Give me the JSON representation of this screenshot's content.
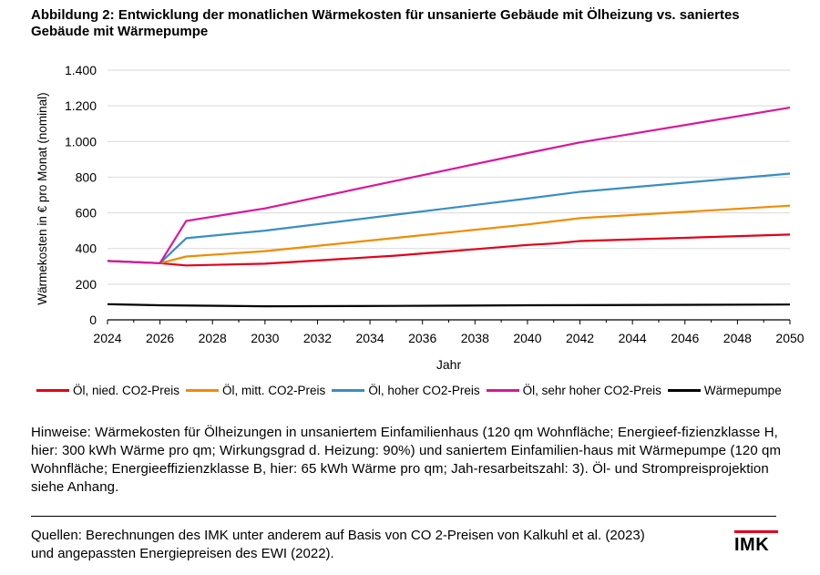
{
  "title": "Abbildung 2: Entwicklung der monatlichen Wärmekosten für unsanierte Gebäude mit Ölheizung vs. saniertes Gebäude mit Wärmepumpe",
  "chart_data": {
    "type": "line",
    "ylabel": "Wärmekosten in € pro Monat (nominal)",
    "xlabel": "Jahr",
    "ylim": [
      0,
      1400
    ],
    "xlim": [
      2024,
      2050
    ],
    "y_ticks": [
      0,
      200,
      400,
      600,
      800,
      1000,
      1200,
      1400
    ],
    "y_tick_labels": [
      "0",
      "200",
      "400",
      "600",
      "800",
      "1.000",
      "1.200",
      "1.400"
    ],
    "x_ticks": [
      2024,
      2026,
      2028,
      2030,
      2032,
      2034,
      2036,
      2038,
      2040,
      2042,
      2044,
      2046,
      2048,
      2050
    ],
    "x_tick_labels": [
      "2024",
      "2026",
      "2028",
      "2030",
      "2032",
      "2034",
      "2036",
      "2038",
      "2040",
      "2042",
      "2044",
      "2046",
      "2048",
      "2050"
    ],
    "grid": "horizontal",
    "legend_position": "bottom",
    "series": [
      {
        "name": "Öl, nied. CO2-Preis",
        "color": "#e2001a",
        "x": [
          2024,
          2026,
          2027,
          2030,
          2035,
          2040,
          2041,
          2042,
          2050
        ],
        "values": [
          330,
          318,
          305,
          315,
          360,
          420,
          428,
          442,
          478
        ]
      },
      {
        "name": "Öl, mitt. CO2-Preis",
        "color": "#f08c00",
        "x": [
          2024,
          2026,
          2027,
          2030,
          2035,
          2040,
          2042,
          2050
        ],
        "values": [
          330,
          318,
          355,
          385,
          460,
          535,
          570,
          640
        ]
      },
      {
        "name": "Öl, hoher CO2-Preis",
        "color": "#3a8ec2",
        "x": [
          2024,
          2026,
          2027,
          2030,
          2035,
          2040,
          2042,
          2050
        ],
        "values": [
          330,
          318,
          458,
          500,
          590,
          680,
          718,
          820
        ]
      },
      {
        "name": "Öl, sehr hoher CO2-Preis",
        "color": "#d8189b",
        "x": [
          2024,
          2026,
          2027,
          2030,
          2035,
          2040,
          2042,
          2050
        ],
        "values": [
          330,
          318,
          555,
          625,
          780,
          935,
          995,
          1190
        ]
      },
      {
        "name": "Wärmepumpe",
        "color": "#000000",
        "x": [
          2024,
          2026,
          2030,
          2035,
          2040,
          2050
        ],
        "values": [
          88,
          82,
          76,
          78,
          82,
          86
        ]
      }
    ]
  },
  "notes": "Hinweise: Wärmekosten für Ölheizungen in unsaniertem Einfamilienhaus (120 qm Wohnfläche; Energieef-fizienzklasse H, hier: 300 kWh Wärme pro qm; Wirkungsgrad d. Heizung: 90%) und saniertem Einfamilien-haus mit Wärmepumpe (120 qm Wohnfläche; Energieeffizienzklasse B, hier: 65 kWh Wärme pro qm; Jah-resarbeitszahl: 3). Öl- und Strompreisprojektion siehe Anhang.",
  "sources": "Quellen: Berechnungen des IMK unter anderem auf Basis von CO 2-Preisen von Kalkuhl et al. (2023) und angepassten Energiepreisen des EWI (2022).",
  "logo": {
    "text": "IMK",
    "color": "#e2001a"
  }
}
